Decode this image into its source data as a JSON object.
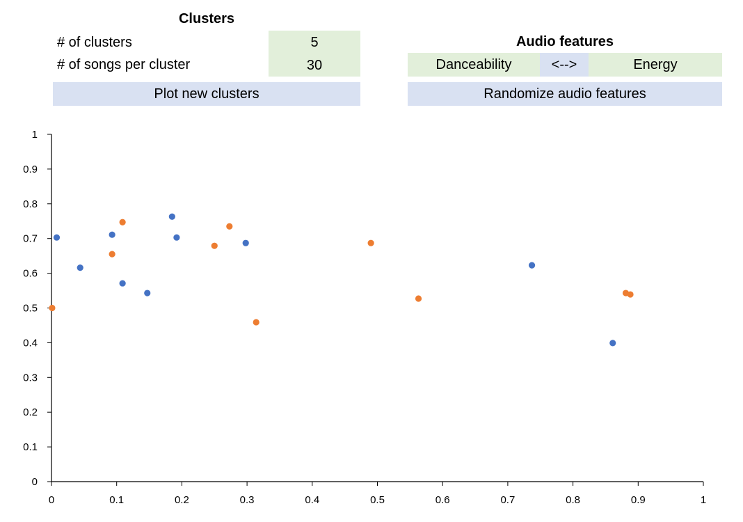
{
  "clusters": {
    "title": "Clusters",
    "num_clusters_label": "# of clusters",
    "num_clusters_value": "5",
    "songs_label": "# of songs per cluster",
    "songs_value": "30",
    "plot_button": "Plot new clusters"
  },
  "audio": {
    "title": "Audio features",
    "feature_x": "Danceability",
    "swap": "<-->",
    "feature_y": "Energy",
    "randomize_button": "Randomize audio features"
  },
  "colors": {
    "input_green": "#e2efda",
    "button_blue": "#d9e1f2",
    "series_blue": "#4472c4",
    "series_orange": "#ed7d31"
  },
  "chart_data": {
    "type": "scatter",
    "title": "",
    "xlabel": "",
    "ylabel": "",
    "xlim": [
      0,
      1
    ],
    "ylim": [
      0,
      1
    ],
    "xticks": [
      "0",
      "0.1",
      "0.2",
      "0.3",
      "0.4",
      "0.5",
      "0.6",
      "0.7",
      "0.8",
      "0.9",
      "1"
    ],
    "yticks": [
      "0",
      "0.1",
      "0.2",
      "0.3",
      "0.4",
      "0.5",
      "0.6",
      "0.7",
      "0.8",
      "0.9",
      "1"
    ],
    "grid": false,
    "legend": "none",
    "series": [
      {
        "color": "#4472c4",
        "points": [
          [
            0.008,
            0.703
          ],
          [
            0.044,
            0.616
          ],
          [
            0.093,
            0.711
          ],
          [
            0.109,
            0.571
          ],
          [
            0.147,
            0.543
          ],
          [
            0.185,
            0.763
          ],
          [
            0.192,
            0.703
          ],
          [
            0.298,
            0.687
          ],
          [
            0.737,
            0.623
          ],
          [
            0.861,
            0.399
          ]
        ]
      },
      {
        "color": "#ed7d31",
        "points": [
          [
            0.001,
            0.5
          ],
          [
            0.093,
            0.655
          ],
          [
            0.109,
            0.747
          ],
          [
            0.25,
            0.679
          ],
          [
            0.273,
            0.735
          ],
          [
            0.314,
            0.459
          ],
          [
            0.49,
            0.687
          ],
          [
            0.563,
            0.527
          ],
          [
            0.881,
            0.543
          ],
          [
            0.888,
            0.539
          ]
        ]
      }
    ]
  }
}
